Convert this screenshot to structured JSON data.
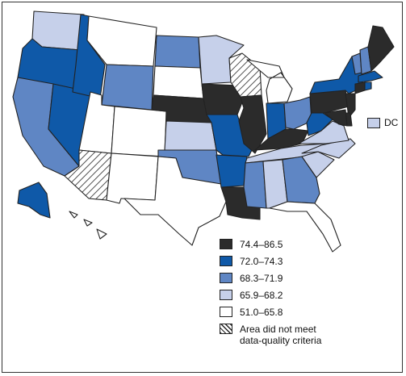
{
  "legend": {
    "items": [
      {
        "label": "74.4–86.5",
        "color": "#2b2b2b",
        "pattern": false
      },
      {
        "label": "72.0–74.3",
        "color": "#0f59a8",
        "pattern": false
      },
      {
        "label": "68.3–71.9",
        "color": "#5f86c4",
        "pattern": false
      },
      {
        "label": "65.9–68.2",
        "color": "#c6d0ea",
        "pattern": false
      },
      {
        "label": "51.0–65.8",
        "color": "#ffffff",
        "pattern": false
      },
      {
        "label": "Area did not meet\ndata-quality criteria",
        "color": "#ffffff",
        "pattern": true
      }
    ]
  },
  "dc": {
    "label": "DC",
    "color": "#c6d0ea"
  },
  "state_colors": {
    "washington": "#c6d0ea",
    "oregon": "#0f59a8",
    "california": "#5f86c4",
    "nevada": "#0f59a8",
    "idaho": "#0f59a8",
    "montana": "#ffffff",
    "wyoming": "#5f86c4",
    "utah": "#ffffff",
    "arizona": "hatch",
    "colorado": "#ffffff",
    "new-mexico": "#ffffff",
    "north-dakota": "#5f86c4",
    "south-dakota": "#ffffff",
    "nebraska": "#2b2b2b",
    "kansas": "#c6d0ea",
    "oklahoma": "#5f86c4",
    "texas": "#ffffff",
    "minnesota": "#c6d0ea",
    "iowa": "#2b2b2b",
    "missouri": "#0f59a8",
    "arkansas": "#0f59a8",
    "louisiana": "#2b2b2b",
    "wisconsin": "hatch",
    "illinois": "#2b2b2b",
    "michigan": "#ffffff",
    "indiana": "#0f59a8",
    "ohio": "#5f86c4",
    "kentucky": "#2b2b2b",
    "tennessee": "#c6d0ea",
    "mississippi": "#5f86c4",
    "alabama": "#c6d0ea",
    "georgia": "#5f86c4",
    "florida": "#ffffff",
    "south-carolina": "#c6d0ea",
    "north-carolina": "#c6d0ea",
    "virginia": "#c6d0ea",
    "west-virginia": "#0f59a8",
    "pennsylvania": "#2b2b2b",
    "new-york": "#0f59a8",
    "vermont": "#5f86c4",
    "new-hampshire": "#5f86c4",
    "maine": "#2b2b2b",
    "massachusetts": "#0f59a8",
    "connecticut": "#2b2b2b",
    "rhode-island": "#0f59a8",
    "new-jersey": "#2b2b2b",
    "delaware": "#2b2b2b",
    "maryland": "#2b2b2b",
    "alaska": "#0f59a8",
    "hawaii": "#ffffff"
  }
}
